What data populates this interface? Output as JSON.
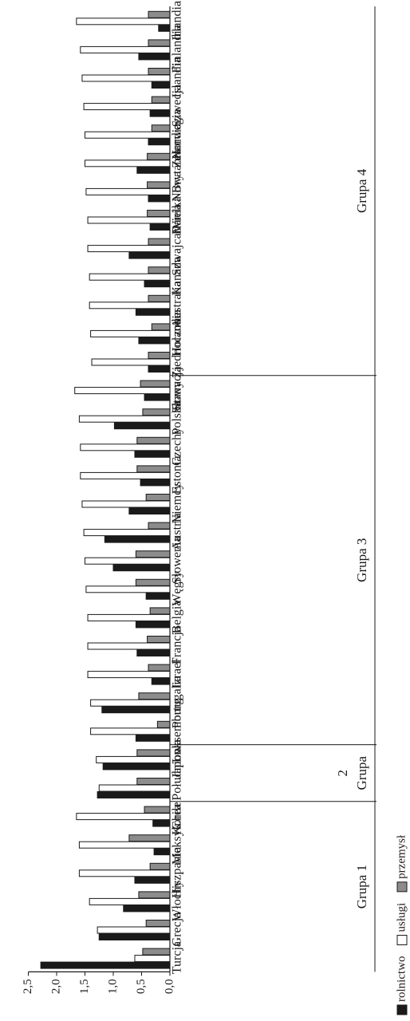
{
  "chart_data": {
    "type": "bar",
    "orientation": "horizontal-rotated",
    "title": "",
    "xlabel": "",
    "ylabel": "",
    "ylim": [
      0,
      2.5
    ],
    "yticks": [
      "0,0",
      "0,5",
      "1,0",
      "1,5",
      "2,0",
      "2,5"
    ],
    "grid": false,
    "legend_position": "bottom",
    "categories": [
      "Turcja",
      "Grecja",
      "Włochy",
      "Hiszpania",
      "Meksyk",
      "Chile",
      "Korea Południowa",
      "Japonia",
      "Luksemburg",
      "Portugalia",
      "Izrael",
      "Francja",
      "Belgia",
      "Węgry",
      "Słowenia",
      "Austria",
      "Niemcy",
      "Estonia",
      "Czechy",
      "Polska",
      "Słowacja",
      "Stany Zjednoczone",
      "Holandia",
      "Australia",
      "Kanada",
      "Szwajcaria",
      "Dania",
      "Wielka Brytania",
      "Nowa Zelandia",
      "Norwegia",
      "Szwecja",
      "Islandia",
      "Finlandia",
      "Irlandia"
    ],
    "series": [
      {
        "name": "rolnictwo",
        "color": "#1a1a1a",
        "values": [
          2.28,
          1.25,
          0.82,
          0.62,
          0.28,
          0.3,
          1.28,
          1.18,
          0.6,
          1.2,
          0.32,
          0.58,
          0.6,
          0.42,
          1.0,
          1.15,
          0.72,
          0.52,
          0.62,
          0.98,
          0.45,
          0.38,
          0.55,
          0.6,
          0.45,
          0.72,
          0.35,
          0.38,
          0.58,
          0.38,
          0.35,
          0.32,
          0.55,
          0.2
        ]
      },
      {
        "name": "usługi",
        "color": "#ffffff",
        "values": [
          0.62,
          1.28,
          1.42,
          1.6,
          1.6,
          1.65,
          1.25,
          1.3,
          1.4,
          1.4,
          1.45,
          1.45,
          1.45,
          1.48,
          1.5,
          1.52,
          1.55,
          1.58,
          1.58,
          1.6,
          1.68,
          1.38,
          1.4,
          1.42,
          1.42,
          1.45,
          1.45,
          1.48,
          1.5,
          1.5,
          1.52,
          1.55,
          1.58,
          1.65
        ]
      },
      {
        "name": "przemysł",
        "color": "#8c8c8c",
        "values": [
          0.48,
          0.42,
          0.55,
          0.35,
          0.72,
          0.45,
          0.58,
          0.58,
          0.22,
          0.55,
          0.38,
          0.4,
          0.35,
          0.6,
          0.6,
          0.38,
          0.42,
          0.58,
          0.58,
          0.48,
          0.52,
          0.38,
          0.32,
          0.38,
          0.38,
          0.38,
          0.4,
          0.4,
          0.4,
          0.32,
          0.32,
          0.38,
          0.38,
          0.38
        ]
      }
    ],
    "groups": [
      {
        "label": "Grupa 1",
        "start": 0,
        "end": 5
      },
      {
        "label": "Grupa 2",
        "start": 6,
        "end": 7
      },
      {
        "label": "Grupa 3",
        "start": 8,
        "end": 20
      },
      {
        "label": "Grupa 4",
        "start": 21,
        "end": 33
      }
    ]
  }
}
